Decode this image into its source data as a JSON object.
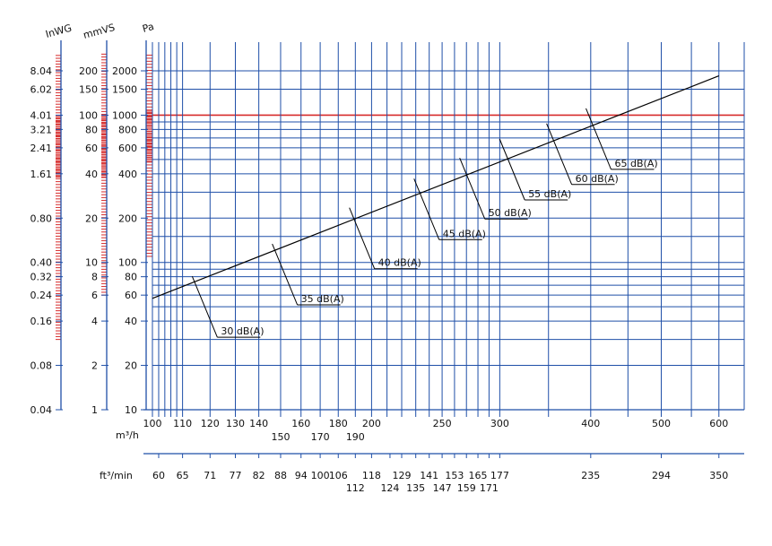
{
  "chart_data": {
    "type": "line",
    "title": "",
    "colors": {
      "grid": "#1f4fa8",
      "highlight": "#d62b2b",
      "curve": "#000000",
      "text": "#111111"
    },
    "xlabel": "m³/h",
    "x2label": "ft³/min",
    "ylabel_pa": "Pa",
    "ylabel_mmvs": "mmVS",
    "ylabel_inwg": "InWG",
    "xlim": [
      100,
      650
    ],
    "ylim": [
      10,
      2800
    ],
    "x_scale": "log",
    "y_scale": "log",
    "x_ticks": [
      {
        "v": 100,
        "t": "100"
      },
      {
        "v": 110,
        "t": "110"
      },
      {
        "v": 120,
        "t": "120"
      },
      {
        "v": 130,
        "t": "130"
      },
      {
        "v": 140,
        "t": "140"
      },
      {
        "v": 150,
        "t": "150"
      },
      {
        "v": 160,
        "t": "160"
      },
      {
        "v": 170,
        "t": "170"
      },
      {
        "v": 180,
        "t": "180"
      },
      {
        "v": 190,
        "t": "190"
      },
      {
        "v": 200,
        "t": "200"
      },
      {
        "v": 250,
        "t": "250"
      },
      {
        "v": 300,
        "t": "300"
      },
      {
        "v": 400,
        "t": "400"
      },
      {
        "v": 500,
        "t": "500"
      },
      {
        "v": 600,
        "t": "600"
      }
    ],
    "x2_ticks": [
      {
        "v": 102,
        "t": "60"
      },
      {
        "v": 110,
        "t": "65"
      },
      {
        "v": 120,
        "t": "71"
      },
      {
        "v": 130,
        "t": "77"
      },
      {
        "v": 140,
        "t": "82"
      },
      {
        "v": 150,
        "t": "88"
      },
      {
        "v": 160,
        "t": "94"
      },
      {
        "v": 170,
        "t": "100"
      },
      {
        "v": 180,
        "t": "106"
      },
      {
        "v": 190,
        "t": "112"
      },
      {
        "v": 200,
        "t": "118"
      },
      {
        "v": 212,
        "t": "124"
      },
      {
        "v": 220,
        "t": "129"
      },
      {
        "v": 230,
        "t": "135"
      },
      {
        "v": 240,
        "t": "141"
      },
      {
        "v": 250,
        "t": "147"
      },
      {
        "v": 260,
        "t": "153"
      },
      {
        "v": 270,
        "t": "159"
      },
      {
        "v": 280,
        "t": "165"
      },
      {
        "v": 290,
        "t": "171"
      },
      {
        "v": 300,
        "t": "177"
      },
      {
        "v": 400,
        "t": "235"
      },
      {
        "v": 500,
        "t": "294"
      },
      {
        "v": 600,
        "t": "350"
      }
    ],
    "pa_ticks": [
      {
        "v": 10,
        "t": "10"
      },
      {
        "v": 20,
        "t": "20"
      },
      {
        "v": 40,
        "t": "40"
      },
      {
        "v": 60,
        "t": "60"
      },
      {
        "v": 80,
        "t": "80"
      },
      {
        "v": 100,
        "t": "100"
      },
      {
        "v": 200,
        "t": "200"
      },
      {
        "v": 400,
        "t": "400"
      },
      {
        "v": 600,
        "t": "600"
      },
      {
        "v": 800,
        "t": "800"
      },
      {
        "v": 1000,
        "t": "1000"
      },
      {
        "v": 1500,
        "t": "1500"
      },
      {
        "v": 2000,
        "t": "2000"
      }
    ],
    "mmvs_ticks": [
      {
        "v": 10,
        "t": "1"
      },
      {
        "v": 20,
        "t": "2"
      },
      {
        "v": 40,
        "t": "4"
      },
      {
        "v": 60,
        "t": "6"
      },
      {
        "v": 80,
        "t": "8"
      },
      {
        "v": 100,
        "t": "10"
      },
      {
        "v": 200,
        "t": "20"
      },
      {
        "v": 400,
        "t": "40"
      },
      {
        "v": 600,
        "t": "60"
      },
      {
        "v": 800,
        "t": "80"
      },
      {
        "v": 1000,
        "t": "100"
      },
      {
        "v": 1500,
        "t": "150"
      },
      {
        "v": 2000,
        "t": "200"
      }
    ],
    "inwg_ticks": [
      {
        "v": 10,
        "t": "0.04"
      },
      {
        "v": 20,
        "t": "0.08"
      },
      {
        "v": 40,
        "t": "0.16"
      },
      {
        "v": 60,
        "t": "0.24"
      },
      {
        "v": 80,
        "t": "0.32"
      },
      {
        "v": 100,
        "t": "0.40"
      },
      {
        "v": 200,
        "t": "0.80"
      },
      {
        "v": 400,
        "t": "1.61"
      },
      {
        "v": 600,
        "t": "2.41"
      },
      {
        "v": 800,
        "t": "3.21"
      },
      {
        "v": 1000,
        "t": "4.01"
      },
      {
        "v": 1500,
        "t": "6.02"
      },
      {
        "v": 2000,
        "t": "8.04"
      }
    ],
    "y_grid": [
      10,
      20,
      30,
      40,
      50,
      60,
      70,
      80,
      90,
      100,
      150,
      200,
      300,
      400,
      500,
      600,
      700,
      800,
      900,
      1000,
      1500,
      2000
    ],
    "x_grid": [
      100,
      102,
      104,
      106,
      108,
      110,
      120,
      130,
      140,
      150,
      160,
      170,
      180,
      190,
      200,
      210,
      220,
      230,
      240,
      250,
      260,
      270,
      280,
      290,
      300,
      350,
      400,
      450,
      500,
      550,
      600
    ],
    "highlight_pa": 1000,
    "series": [
      {
        "x": [
          100,
          600
        ],
        "y": [
          57,
          1850
        ]
      }
    ],
    "annotations": [
      {
        "text": "30 dB(A)",
        "x": 118,
        "y": 50
      },
      {
        "text": "35 dB(A)",
        "x": 152,
        "y": 83
      },
      {
        "text": "40 dB(A)",
        "x": 194,
        "y": 146
      },
      {
        "text": "45 dB(A)",
        "x": 238,
        "y": 230
      },
      {
        "text": "50 dB(A)",
        "x": 275,
        "y": 318
      },
      {
        "text": "55 dB(A)",
        "x": 312,
        "y": 428
      },
      {
        "text": "60 dB(A)",
        "x": 362,
        "y": 545
      },
      {
        "text": "65 dB(A)",
        "x": 410,
        "y": 690
      }
    ]
  }
}
